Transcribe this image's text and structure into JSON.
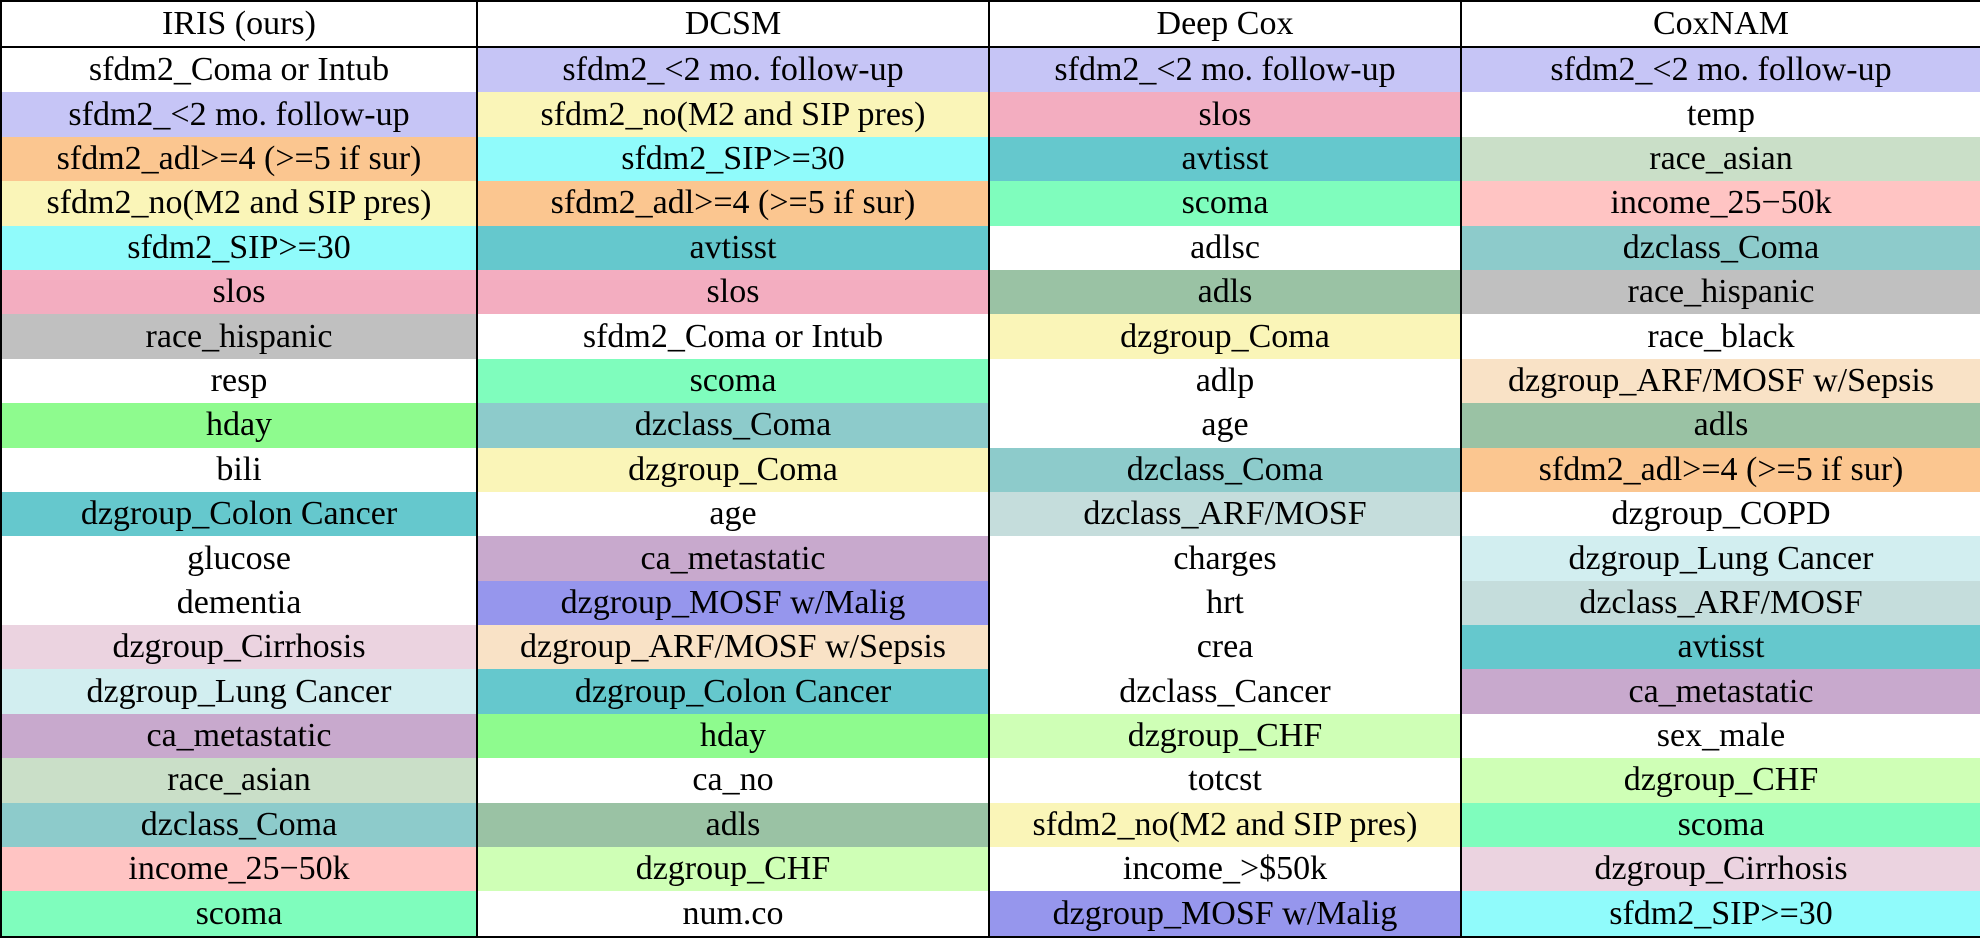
{
  "palette": {
    "lavender": "#c6c5f6",
    "yellow": "#faf5b8",
    "orange": "#fbc690",
    "cyan": "#90fbfb",
    "pink": "#f3adc0",
    "gray": "#c0c0c0",
    "mint": "#7ffdbd",
    "green": "#8efb8e",
    "slate_teal": "#8dcbcb",
    "teal": "#65c8cd",
    "pale_cyan": "#d2eef0",
    "mauve": "#c8a9cd",
    "indigo": "#9696ed",
    "light_pink": "#ebd3e0",
    "beige": "#f9e2c6",
    "light_green": "#cfffb6",
    "pale_green": "#cadfc8",
    "salmon": "#ffc4c3",
    "gray_green": "#9ac2a4",
    "pale_slate": "#c5dddc",
    "white": "#ffffff"
  },
  "columns": [
    "IRIS (ours)",
    "DCSM",
    "Deep Cox",
    "CoxNAM"
  ],
  "rows": [
    [
      {
        "text": "sfdm2_Coma or Intub",
        "color": "white"
      },
      {
        "text": "sfdm2_<2 mo. follow-up",
        "color": "lavender"
      },
      {
        "text": "sfdm2_<2 mo. follow-up",
        "color": "lavender"
      },
      {
        "text": "sfdm2_<2 mo. follow-up",
        "color": "lavender"
      }
    ],
    [
      {
        "text": "sfdm2_<2 mo. follow-up",
        "color": "lavender"
      },
      {
        "text": "sfdm2_no(M2 and SIP pres)",
        "color": "yellow"
      },
      {
        "text": "slos",
        "color": "pink"
      },
      {
        "text": "temp",
        "color": "white"
      }
    ],
    [
      {
        "text": "sfdm2_adl>=4 (>=5 if sur)",
        "color": "orange"
      },
      {
        "text": "sfdm2_SIP>=30",
        "color": "cyan"
      },
      {
        "text": "avtisst",
        "color": "teal"
      },
      {
        "text": "race_asian",
        "color": "pale_green"
      }
    ],
    [
      {
        "text": "sfdm2_no(M2 and SIP pres)",
        "color": "yellow"
      },
      {
        "text": "sfdm2_adl>=4 (>=5 if sur)",
        "color": "orange"
      },
      {
        "text": "scoma",
        "color": "mint"
      },
      {
        "text": "income_25−50k",
        "color": "salmon"
      }
    ],
    [
      {
        "text": "sfdm2_SIP>=30",
        "color": "cyan"
      },
      {
        "text": "avtisst",
        "color": "teal"
      },
      {
        "text": "adlsc",
        "color": "white"
      },
      {
        "text": "dzclass_Coma",
        "color": "slate_teal"
      }
    ],
    [
      {
        "text": "slos",
        "color": "pink"
      },
      {
        "text": "slos",
        "color": "pink"
      },
      {
        "text": "adls",
        "color": "gray_green"
      },
      {
        "text": "race_hispanic",
        "color": "gray"
      }
    ],
    [
      {
        "text": "race_hispanic",
        "color": "gray"
      },
      {
        "text": "sfdm2_Coma or Intub",
        "color": "white"
      },
      {
        "text": "dzgroup_Coma",
        "color": "yellow"
      },
      {
        "text": "race_black",
        "color": "white"
      }
    ],
    [
      {
        "text": "resp",
        "color": "white"
      },
      {
        "text": "scoma",
        "color": "mint"
      },
      {
        "text": "adlp",
        "color": "white"
      },
      {
        "text": "dzgroup_ARF/MOSF w/Sepsis",
        "color": "beige"
      }
    ],
    [
      {
        "text": "hday",
        "color": "green"
      },
      {
        "text": "dzclass_Coma",
        "color": "slate_teal"
      },
      {
        "text": "age",
        "color": "white"
      },
      {
        "text": "adls",
        "color": "gray_green"
      }
    ],
    [
      {
        "text": "bili",
        "color": "white"
      },
      {
        "text": "dzgroup_Coma",
        "color": "yellow"
      },
      {
        "text": "dzclass_Coma",
        "color": "slate_teal"
      },
      {
        "text": "sfdm2_adl>=4 (>=5 if sur)",
        "color": "orange"
      }
    ],
    [
      {
        "text": "dzgroup_Colon Cancer",
        "color": "teal"
      },
      {
        "text": "age",
        "color": "white"
      },
      {
        "text": "dzclass_ARF/MOSF",
        "color": "pale_slate"
      },
      {
        "text": "dzgroup_COPD",
        "color": "white"
      }
    ],
    [
      {
        "text": "glucose",
        "color": "white"
      },
      {
        "text": "ca_metastatic",
        "color": "mauve"
      },
      {
        "text": "charges",
        "color": "white"
      },
      {
        "text": "dzgroup_Lung Cancer",
        "color": "pale_cyan"
      }
    ],
    [
      {
        "text": "dementia",
        "color": "white"
      },
      {
        "text": "dzgroup_MOSF w/Malig",
        "color": "indigo"
      },
      {
        "text": "hrt",
        "color": "white"
      },
      {
        "text": "dzclass_ARF/MOSF",
        "color": "pale_slate"
      }
    ],
    [
      {
        "text": "dzgroup_Cirrhosis",
        "color": "light_pink"
      },
      {
        "text": "dzgroup_ARF/MOSF w/Sepsis",
        "color": "beige"
      },
      {
        "text": "crea",
        "color": "white"
      },
      {
        "text": "avtisst",
        "color": "teal"
      }
    ],
    [
      {
        "text": "dzgroup_Lung Cancer",
        "color": "pale_cyan"
      },
      {
        "text": "dzgroup_Colon Cancer",
        "color": "teal"
      },
      {
        "text": "dzclass_Cancer",
        "color": "white"
      },
      {
        "text": "ca_metastatic",
        "color": "mauve"
      }
    ],
    [
      {
        "text": "ca_metastatic",
        "color": "mauve"
      },
      {
        "text": "hday",
        "color": "green"
      },
      {
        "text": "dzgroup_CHF",
        "color": "light_green"
      },
      {
        "text": "sex_male",
        "color": "white"
      }
    ],
    [
      {
        "text": "race_asian",
        "color": "pale_green"
      },
      {
        "text": "ca_no",
        "color": "white"
      },
      {
        "text": "totcst",
        "color": "white"
      },
      {
        "text": "dzgroup_CHF",
        "color": "light_green"
      }
    ],
    [
      {
        "text": "dzclass_Coma",
        "color": "slate_teal"
      },
      {
        "text": "adls",
        "color": "gray_green"
      },
      {
        "text": "sfdm2_no(M2 and SIP pres)",
        "color": "yellow"
      },
      {
        "text": "scoma",
        "color": "mint"
      }
    ],
    [
      {
        "text": "income_25−50k",
        "color": "salmon"
      },
      {
        "text": "dzgroup_CHF",
        "color": "light_green"
      },
      {
        "text": "income_>$50k",
        "color": "white"
      },
      {
        "text": "dzgroup_Cirrhosis",
        "color": "light_pink"
      }
    ],
    [
      {
        "text": "scoma",
        "color": "mint"
      },
      {
        "text": "num.co",
        "color": "white"
      },
      {
        "text": "dzgroup_MOSF w/Malig",
        "color": "indigo"
      },
      {
        "text": "sfdm2_SIP>=30",
        "color": "cyan"
      }
    ]
  ]
}
